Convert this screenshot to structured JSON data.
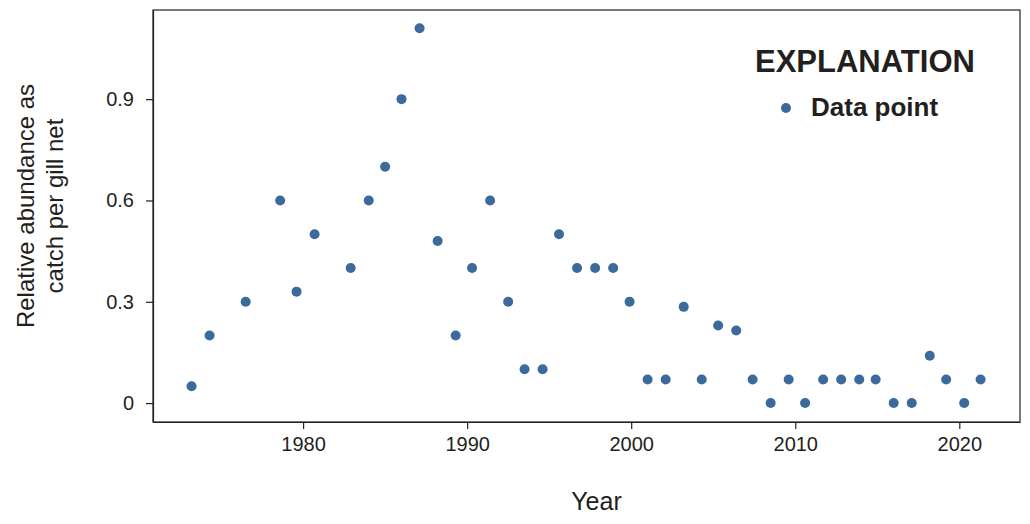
{
  "chart_data": {
    "type": "scatter",
    "xlabel": "Year",
    "ylabel": [
      "Relative abundance as",
      "catch per gill net"
    ],
    "legend_title": "EXPLANATION",
    "legend": "upper right",
    "series": [
      {
        "name": "Data point",
        "color": "#3b6a9c",
        "marker": "circle",
        "x": [
          1973.2,
          1974.3,
          1976.5,
          1978.6,
          1979.6,
          1980.7,
          1982.9,
          1984.0,
          1985.0,
          1986.0,
          1987.1,
          1988.2,
          1989.3,
          1990.3,
          1991.4,
          1992.5,
          1993.5,
          1994.6,
          1995.6,
          1996.7,
          1997.8,
          1998.9,
          1999.9,
          2001.0,
          2002.1,
          2003.2,
          2004.3,
          2005.3,
          2006.4,
          2007.4,
          2008.5,
          2009.6,
          2010.6,
          2011.7,
          2012.8,
          2013.9,
          2014.9,
          2016.0,
          2017.1,
          2018.2,
          2019.2,
          2020.3,
          2021.3
        ],
        "values": [
          0.05,
          0.2,
          0.3,
          0.6,
          0.33,
          0.5,
          0.4,
          0.6,
          0.7,
          0.9,
          1.11,
          0.48,
          0.2,
          0.4,
          0.6,
          0.3,
          0.1,
          0.1,
          0.5,
          0.4,
          0.4,
          0.4,
          0.3,
          0.07,
          0.07,
          0.285,
          0.07,
          0.23,
          0.215,
          0.07,
          0,
          0.07,
          0,
          0.07,
          0.07,
          0.07,
          0.07,
          0,
          0,
          0.14,
          0.07,
          0,
          0.07
        ]
      }
    ],
    "xlim": [
      1970.85,
      2023.7
    ],
    "xticks": [
      1980,
      1990,
      2000,
      2010,
      2020
    ],
    "ylim": [
      -0.056,
      1.164
    ],
    "yticks": [
      0,
      0.3,
      0.6,
      0.9
    ],
    "grid": false
  }
}
